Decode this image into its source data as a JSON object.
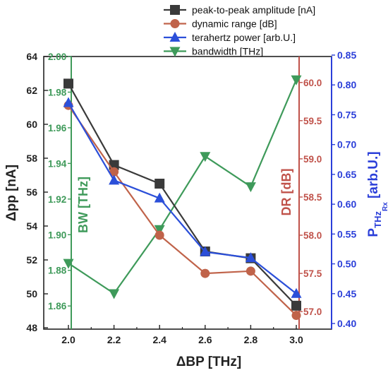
{
  "chart_data": {
    "type": "line",
    "x": [
      2.0,
      2.2,
      2.4,
      2.6,
      2.8,
      3.0
    ],
    "xlabel": "ΔBP [THz]",
    "xticks": [
      "2.0",
      "2.2",
      "2.4",
      "2.6",
      "2.8",
      "3.0"
    ],
    "xlim": [
      1.85,
      3.15
    ],
    "axes": {
      "pp": {
        "label": "Δpp [nA]",
        "ylim": [
          48,
          64
        ],
        "ticks": [
          "48",
          "50",
          "52",
          "54",
          "56",
          "58",
          "60",
          "62",
          "64"
        ],
        "color": "#222222"
      },
      "bw": {
        "label": "BW [THz]",
        "ylim": [
          1.847,
          2.0
        ],
        "ticks": [
          "1.86",
          "1.88",
          "1.90",
          "1.92",
          "1.94",
          "1.96",
          "1.98",
          "2.00"
        ],
        "color": "#3f9a5a"
      },
      "dr": {
        "label": "DR [dB]",
        "ylim": [
          56.77,
          60.34
        ],
        "ticks": [
          "57.0",
          "57.5",
          "58.0",
          "58.5",
          "59.0",
          "59.5",
          "60.0"
        ],
        "color": "#c0524a"
      },
      "pthz": {
        "label_main": "P",
        "label_sub": "THz",
        "label_subsub": "Rx",
        "label_unit": " [arb.U.]",
        "ylim": [
          0.4,
          0.85
        ],
        "ticks": [
          "0.40",
          "0.45",
          "0.50",
          "0.55",
          "0.60",
          "0.65",
          "0.70",
          "0.75",
          "0.80",
          "0.85"
        ],
        "color": "#2b3fd9"
      }
    },
    "series": [
      {
        "name": "peak-to-peak amplitude [nA]",
        "axis": "pp",
        "marker": "square",
        "color": "#3a3a3a",
        "values": [
          62.4,
          57.6,
          56.5,
          52.5,
          52.1,
          49.3
        ]
      },
      {
        "name": "dynamic range [dB]",
        "axis": "dr",
        "marker": "circle",
        "color": "#c0634a",
        "values": [
          59.7,
          58.83,
          58.0,
          57.5,
          57.53,
          56.95
        ]
      },
      {
        "name": "terahertz power [arb.U.]",
        "axis": "pthz",
        "marker": "triangle-up",
        "color": "#2b4fd9",
        "values": [
          0.77,
          0.64,
          0.61,
          0.52,
          0.51,
          0.45
        ]
      },
      {
        "name": "bandwidth [THz]",
        "axis": "bw",
        "marker": "triangle-down",
        "color": "#3e9a5a",
        "values": [
          1.884,
          1.867,
          1.903,
          1.944,
          1.927,
          1.987
        ]
      }
    ],
    "legend_position": "top-right",
    "grid": false
  }
}
